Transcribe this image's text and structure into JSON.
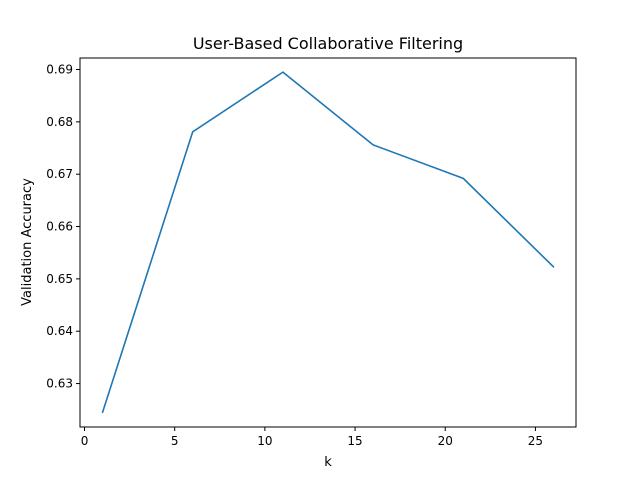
{
  "chart_data": {
    "type": "line",
    "title": "User-Based Collaborative Filtering",
    "xlabel": "k",
    "ylabel": "Validation Accuracy",
    "xlim": [
      -0.25,
      27.25
    ],
    "ylim": [
      0.6217,
      0.6922
    ],
    "xticks": [
      0,
      5,
      10,
      15,
      20,
      25
    ],
    "xtick_labels": [
      "0",
      "5",
      "10",
      "15",
      "20",
      "25"
    ],
    "yticks": [
      0.63,
      0.64,
      0.65,
      0.66,
      0.67,
      0.68,
      0.69
    ],
    "ytick_labels": [
      "0.63",
      "0.64",
      "0.65",
      "0.66",
      "0.67",
      "0.68",
      "0.69"
    ],
    "grid": false,
    "series": [
      {
        "color": "#1f77b4",
        "x": [
          1,
          6,
          11,
          16,
          21,
          26
        ],
        "y": [
          0.6245,
          0.6781,
          0.6895,
          0.6756,
          0.6692,
          0.6523
        ]
      }
    ]
  }
}
